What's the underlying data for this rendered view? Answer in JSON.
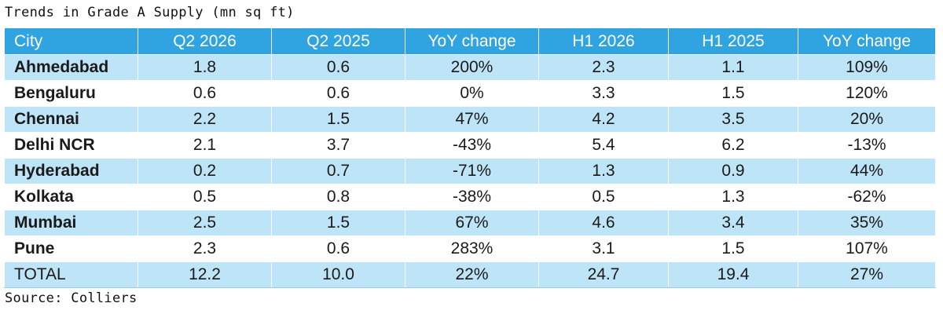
{
  "title": "Trends in Grade A Supply (mn sq ft)",
  "source": "Source: Colliers",
  "colors": {
    "header_bg": "#2fa4e0",
    "stripe_bg": "#bee4f7",
    "header_text": "#ffffff"
  },
  "chart_data": {
    "type": "table",
    "title": "Trends in Grade A Supply (mn sq ft)",
    "columns": [
      "City",
      "Q2 2026",
      "Q2 2025",
      "YoY change",
      "H1 2026",
      "H1 2025",
      "YoY change"
    ],
    "rows": [
      [
        "Ahmedabad",
        "1.8",
        "0.6",
        "200%",
        "2.3",
        "1.1",
        "109%"
      ],
      [
        "Bengaluru",
        "0.6",
        "0.6",
        "0%",
        "3.3",
        "1.5",
        "120%"
      ],
      [
        "Chennai",
        "2.2",
        "1.5",
        "47%",
        "4.2",
        "3.5",
        "20%"
      ],
      [
        "Delhi NCR",
        "2.1",
        "3.7",
        "-43%",
        "5.4",
        "6.2",
        "-13%"
      ],
      [
        "Hyderabad",
        "0.2",
        "0.7",
        "-71%",
        "1.3",
        "0.9",
        "44%"
      ],
      [
        "Kolkata",
        "0.5",
        "0.8",
        "-38%",
        "0.5",
        "1.3",
        "-62%"
      ],
      [
        "Mumbai",
        "2.5",
        "1.5",
        "67%",
        "4.6",
        "3.4",
        "35%"
      ],
      [
        "Pune",
        "2.3",
        "0.6",
        "283%",
        "3.1",
        "1.5",
        "107%"
      ],
      [
        "TOTAL",
        "12.2",
        "10.0",
        "22%",
        "24.7",
        "19.4",
        "27%"
      ]
    ]
  }
}
